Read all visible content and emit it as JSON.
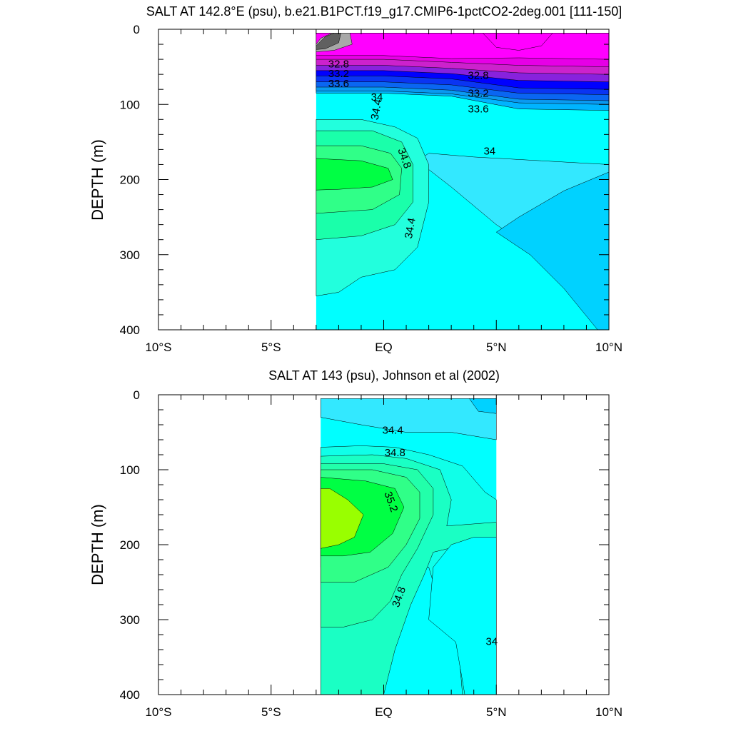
{
  "chart_data": [
    {
      "type": "contour",
      "title": "SALT AT 142.8°E (psu), b.e21.B1PCT.f19_g17.CMIP6-1pctCO2-2deg.001 [111-150]",
      "ylabel": "DEPTH (m)",
      "xlabel": "",
      "x_ticks": [
        "10°S",
        "5°S",
        "EQ",
        "5°N",
        "10°N"
      ],
      "x_tick_values": [
        -10,
        -5,
        0,
        5,
        10
      ],
      "y_ticks": [
        "0",
        "100",
        "200",
        "300",
        "400"
      ],
      "y_tick_values": [
        0,
        100,
        200,
        300,
        400
      ],
      "xlim": [
        -10,
        10
      ],
      "ylim": [
        400,
        0
      ],
      "data_extent_lat": [
        -3,
        10
      ],
      "contour_labels": [
        {
          "text": "32.8",
          "lat": -2.0,
          "depth": 47
        },
        {
          "text": "33.2",
          "lat": -2.0,
          "depth": 60
        },
        {
          "text": "33.6",
          "lat": -2.0,
          "depth": 73
        },
        {
          "text": "32.8",
          "lat": 4.2,
          "depth": 62
        },
        {
          "text": "33.2",
          "lat": 4.2,
          "depth": 86
        },
        {
          "text": "33.6",
          "lat": 4.2,
          "depth": 107
        },
        {
          "text": "34",
          "lat": -0.3,
          "depth": 91
        },
        {
          "text": "34.4",
          "lat": -0.3,
          "depth": 107
        },
        {
          "text": "34.8",
          "lat": 0.9,
          "depth": 172
        },
        {
          "text": "34",
          "lat": 4.7,
          "depth": 163
        },
        {
          "text": "34.4",
          "lat": 1.2,
          "depth": 265
        }
      ],
      "fill_colors": [
        "#606060",
        "#a8a8a8",
        "#ff00ff",
        "#e600e6",
        "#cc22cc",
        "#8822dd",
        "#0000ff",
        "#0a35f2",
        "#0a66f2",
        "#0a99f0",
        "#00b4ff",
        "#00d2ff",
        "#33e8ff",
        "#00ffff",
        "#22ffdd",
        "#1affaa",
        "#30ff88",
        "#00ff44"
      ]
    },
    {
      "type": "contour",
      "title": "SALT AT 143 (psu), Johnson et al (2002)",
      "ylabel": "DEPTH (m)",
      "xlabel": "",
      "x_ticks": [
        "10°S",
        "5°S",
        "EQ",
        "5°N",
        "10°N"
      ],
      "x_tick_values": [
        -10,
        -5,
        0,
        5,
        10
      ],
      "y_ticks": [
        "0",
        "100",
        "200",
        "300",
        "400"
      ],
      "y_tick_values": [
        0,
        100,
        200,
        300,
        400
      ],
      "xlim": [
        -10,
        10
      ],
      "ylim": [
        400,
        0
      ],
      "data_extent_lat": [
        -2.8,
        5
      ],
      "contour_labels": [
        {
          "text": "34.4",
          "lat": 0.4,
          "depth": 48
        },
        {
          "text": "34.8",
          "lat": 0.5,
          "depth": 78
        },
        {
          "text": "35.2",
          "lat": 0.3,
          "depth": 143
        },
        {
          "text": "34.8",
          "lat": 0.7,
          "depth": 270
        },
        {
          "text": "34",
          "lat": 4.8,
          "depth": 330
        }
      ],
      "fill_colors": [
        "#00d2ff",
        "#33e8ff",
        "#00ffff",
        "#10ffe8",
        "#1affc4",
        "#22ffaa",
        "#30ff88",
        "#00ff44",
        "#00ff22",
        "#99ff00"
      ]
    }
  ]
}
